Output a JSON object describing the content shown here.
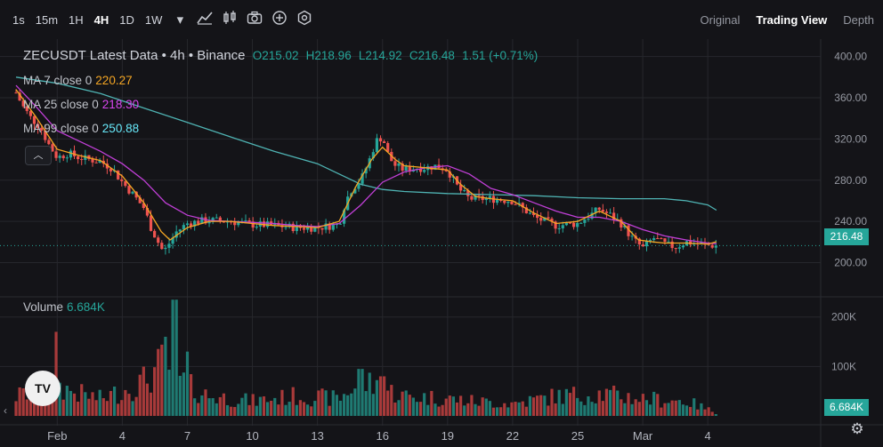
{
  "toolbar": {
    "timeframes": [
      "1s",
      "15m",
      "1H",
      "4H",
      "1D",
      "1W"
    ],
    "active_timeframe": "4H",
    "icons": [
      "chevron-down-icon",
      "indicator-chart-icon",
      "candles-icon",
      "camera-icon",
      "add-circle-icon",
      "settings-hex-icon"
    ],
    "views": [
      "Original",
      "Trading View",
      "Depth"
    ],
    "active_view": "Trading View"
  },
  "legend": {
    "title": "ZECUSDT Latest Data • 4h • Binance",
    "open": "O215.02",
    "high": "H218.96",
    "low": "L214.92",
    "close": "C216.48",
    "change": "1.51 (+0.71%)"
  },
  "ma": [
    {
      "label": "MA 7 close 0",
      "value": "220.27",
      "color": "#f5a623"
    },
    {
      "label": "MA 25 close 0",
      "value": "218.30",
      "color": "#d946ef"
    },
    {
      "label": "MA 99 close 0",
      "value": "250.88",
      "color": "#67e8f9"
    }
  ],
  "volume": {
    "label": "Volume",
    "value": "6.684K"
  },
  "current_price": "216.48",
  "colors": {
    "up": "#26a69a",
    "down": "#ef5350",
    "ma7": "#f5a623",
    "ma25": "#c03fd6",
    "ma99": "#4fb3b3"
  },
  "chart_data": {
    "type": "candlestick",
    "price_ticks": [
      "400.00",
      "360.00",
      "320.00",
      "280.00",
      "240.00",
      "200.00"
    ],
    "price_range": [
      172,
      410
    ],
    "volume_ticks": [
      "200K",
      "100K"
    ],
    "volume_range": [
      0,
      230000
    ],
    "x_labels": [
      {
        "label": "Feb",
        "x": 0
      },
      {
        "label": "4",
        "x": 3
      },
      {
        "label": "7",
        "x": 6
      },
      {
        "label": "10",
        "x": 9
      },
      {
        "label": "13",
        "x": 12
      },
      {
        "label": "16",
        "x": 15
      },
      {
        "label": "19",
        "x": 18
      },
      {
        "label": "22",
        "x": 21
      },
      {
        "label": "25",
        "x": 24
      },
      {
        "label": "Mar",
        "x": 27
      },
      {
        "label": "4",
        "x": 30
      }
    ],
    "x_range": [
      -1.9,
      33.4
    ],
    "close_path": [
      [
        -1.9,
        365
      ],
      [
        -1.6,
        352
      ],
      [
        -1.2,
        340
      ],
      [
        -0.8,
        332
      ],
      [
        -0.4,
        315
      ],
      [
        0,
        302
      ],
      [
        0.5,
        306
      ],
      [
        1,
        302
      ],
      [
        1.5,
        300
      ],
      [
        2,
        298
      ],
      [
        2.5,
        292
      ],
      [
        3,
        278
      ],
      [
        3.5,
        266
      ],
      [
        4,
        253
      ],
      [
        4.3,
        235
      ],
      [
        4.6,
        222
      ],
      [
        4.9,
        210
      ],
      [
        5.2,
        220
      ],
      [
        5.5,
        230
      ],
      [
        6,
        238
      ],
      [
        6.5,
        240
      ],
      [
        7,
        241
      ],
      [
        8,
        240
      ],
      [
        9,
        237
      ],
      [
        10,
        236
      ],
      [
        11,
        234
      ],
      [
        12,
        234
      ],
      [
        13,
        237
      ],
      [
        13.3,
        260
      ],
      [
        13.6,
        272
      ],
      [
        14,
        280
      ],
      [
        14.4,
        300
      ],
      [
        14.7,
        318
      ],
      [
        15,
        322
      ],
      [
        15.3,
        302
      ],
      [
        15.6,
        294
      ],
      [
        16,
        290
      ],
      [
        16.5,
        292
      ],
      [
        17,
        292
      ],
      [
        17.5,
        294
      ],
      [
        18,
        290
      ],
      [
        18.5,
        272
      ],
      [
        19,
        262
      ],
      [
        20,
        262
      ],
      [
        21,
        260
      ],
      [
        21.5,
        252
      ],
      [
        22,
        244
      ],
      [
        23,
        236
      ],
      [
        24,
        238
      ],
      [
        25,
        252
      ],
      [
        25.5,
        246
      ],
      [
        26,
        238
      ],
      [
        26.5,
        224
      ],
      [
        27,
        214
      ],
      [
        27.5,
        224
      ],
      [
        28,
        218
      ],
      [
        28.5,
        215
      ],
      [
        29,
        220
      ],
      [
        30,
        217
      ],
      [
        30.4,
        216.48
      ]
    ],
    "ma7": [
      [
        -1.9,
        368
      ],
      [
        -1,
        342
      ],
      [
        0,
        310
      ],
      [
        1,
        304
      ],
      [
        2,
        299
      ],
      [
        3,
        284
      ],
      [
        4,
        258
      ],
      [
        4.8,
        230
      ],
      [
        5.2,
        222
      ],
      [
        6,
        234
      ],
      [
        7,
        240
      ],
      [
        8,
        240
      ],
      [
        9,
        238
      ],
      [
        10,
        236
      ],
      [
        11,
        235
      ],
      [
        12,
        234
      ],
      [
        13,
        240
      ],
      [
        13.8,
        275
      ],
      [
        14.5,
        300
      ],
      [
        15,
        312
      ],
      [
        15.6,
        300
      ],
      [
        16,
        294
      ],
      [
        17,
        292
      ],
      [
        18,
        290
      ],
      [
        18.6,
        276
      ],
      [
        19.3,
        264
      ],
      [
        20,
        262
      ],
      [
        21,
        260
      ],
      [
        22,
        248
      ],
      [
        23,
        238
      ],
      [
        24,
        240
      ],
      [
        25,
        250
      ],
      [
        26,
        240
      ],
      [
        26.8,
        222
      ],
      [
        27.5,
        220
      ],
      [
        28,
        219
      ],
      [
        29,
        219
      ],
      [
        30,
        218
      ],
      [
        30.4,
        220.27
      ]
    ],
    "ma25": [
      [
        -1.9,
        372
      ],
      [
        -1,
        352
      ],
      [
        0,
        328
      ],
      [
        1,
        318
      ],
      [
        2,
        308
      ],
      [
        3,
        296
      ],
      [
        4,
        280
      ],
      [
        5,
        258
      ],
      [
        6,
        246
      ],
      [
        7,
        241
      ],
      [
        8,
        240
      ],
      [
        9,
        239
      ],
      [
        10,
        238
      ],
      [
        11,
        236
      ],
      [
        12,
        235
      ],
      [
        13,
        238
      ],
      [
        14,
        256
      ],
      [
        15,
        278
      ],
      [
        16,
        288
      ],
      [
        17,
        292
      ],
      [
        18,
        294
      ],
      [
        19,
        286
      ],
      [
        20,
        272
      ],
      [
        21,
        266
      ],
      [
        22,
        258
      ],
      [
        23,
        250
      ],
      [
        24,
        244
      ],
      [
        25,
        244
      ],
      [
        26,
        240
      ],
      [
        27,
        232
      ],
      [
        28,
        226
      ],
      [
        29,
        222
      ],
      [
        30,
        219
      ],
      [
        30.4,
        218.3
      ]
    ],
    "ma99": [
      [
        -1.9,
        380
      ],
      [
        0,
        374
      ],
      [
        2,
        364
      ],
      [
        4,
        350
      ],
      [
        6,
        336
      ],
      [
        8,
        322
      ],
      [
        10,
        308
      ],
      [
        12,
        296
      ],
      [
        13,
        286
      ],
      [
        14,
        276
      ],
      [
        15,
        271
      ],
      [
        16,
        269
      ],
      [
        18,
        267
      ],
      [
        20,
        266
      ],
      [
        22,
        265
      ],
      [
        24,
        263
      ],
      [
        26,
        262
      ],
      [
        28,
        262
      ],
      [
        29,
        260
      ],
      [
        30,
        256
      ],
      [
        30.4,
        250.88
      ]
    ],
    "volume_samples": [
      [
        -1.9,
        40000
      ],
      [
        0,
        60000
      ],
      [
        1,
        45000
      ],
      [
        2,
        35000
      ],
      [
        3,
        50000
      ],
      [
        4,
        70000
      ],
      [
        5,
        110000
      ],
      [
        6,
        60000
      ],
      [
        7,
        40000
      ],
      [
        9,
        30000
      ],
      [
        11,
        40000
      ],
      [
        13,
        35000
      ],
      [
        14,
        70000
      ],
      [
        15,
        55000
      ],
      [
        16,
        40000
      ],
      [
        18,
        35000
      ],
      [
        19,
        30000
      ],
      [
        21,
        25000
      ],
      [
        23,
        40000
      ],
      [
        25,
        45000
      ],
      [
        27,
        35000
      ],
      [
        29,
        30000
      ],
      [
        30.4,
        6684
      ]
    ],
    "volume_spikes": [
      [
        0,
        170000
      ],
      [
        5,
        160000
      ],
      [
        5.4,
        235000
      ],
      [
        6,
        130000
      ],
      [
        14,
        95000
      ],
      [
        15,
        80000
      ]
    ]
  }
}
